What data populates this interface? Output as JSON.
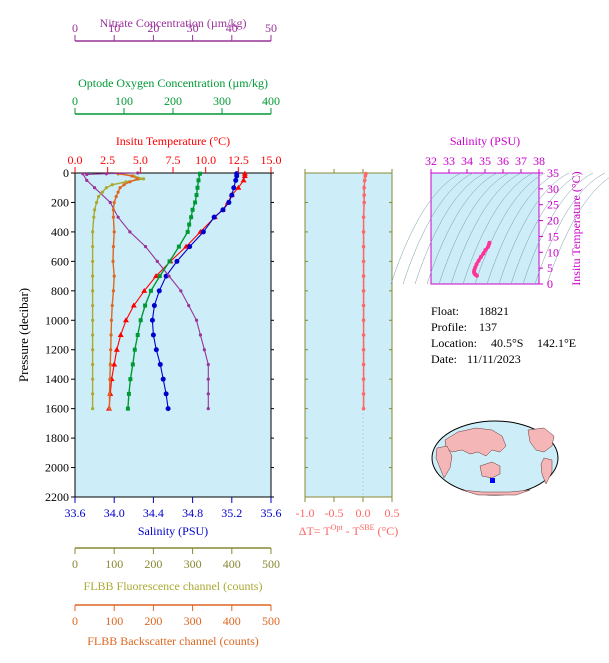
{
  "colors": {
    "temperature": "#ff0000",
    "salinity": "#0000cc",
    "nitrate": "#993399",
    "oxygen": "#009933",
    "fluorescence": "#aaaa33",
    "backscatter": "#dd6622",
    "delta_t": "#ff6666",
    "ts_axis": "#cc00cc",
    "ts_curve": "#ff3399",
    "plot_bg": "#cdeef8",
    "axis_olive": "#888833"
  },
  "info": {
    "float_label": "Float:",
    "float_value": "18821",
    "profile_label": "Profile:",
    "profile_value": "137",
    "location_label": "Location:",
    "location_lat": "40.5°S",
    "location_lon": "142.1°E",
    "date_label": "Date:",
    "date_value": "11/11/2023"
  },
  "map": {
    "marker": "float-position-marker"
  },
  "chart_data": [
    {
      "type": "line",
      "id": "profile",
      "ylabel": "Pressure (decibar)",
      "ylim": [
        2200,
        0
      ],
      "y_ticks": [
        "0",
        "200",
        "400",
        "600",
        "800",
        "1000",
        "1200",
        "1400",
        "1600",
        "1800",
        "2000",
        "2200"
      ],
      "grid": false,
      "axes": [
        {
          "key": "nitrate",
          "label": "Nitrate Concentration (µm/kg)",
          "range": [
            0,
            50
          ],
          "ticks": [
            "0",
            "10",
            "20",
            "30",
            "40",
            "50"
          ]
        },
        {
          "key": "oxygen",
          "label": "Optode Oxygen Concentration (µm/kg)",
          "range": [
            0,
            400
          ],
          "ticks": [
            "0",
            "100",
            "200",
            "300",
            "400"
          ]
        },
        {
          "key": "temperature",
          "label": "Insitu Temperature (°C)",
          "range": [
            0,
            15
          ],
          "ticks": [
            "0.0",
            "2.5",
            "5.0",
            "7.5",
            "10.0",
            "12.5",
            "15.0"
          ]
        },
        {
          "key": "salinity",
          "label": "Salinity (PSU)",
          "range": [
            33.6,
            35.6
          ],
          "ticks": [
            "33.6",
            "34.0",
            "34.4",
            "34.8",
            "35.2",
            "35.6"
          ]
        },
        {
          "key": "fluorescence",
          "label": "FLBB Fluorescence channel (counts)",
          "range": [
            0,
            500
          ],
          "ticks": [
            "0",
            "100",
            "200",
            "300",
            "400",
            "500"
          ]
        },
        {
          "key": "backscatter",
          "label": "FLBB Backscatter channel (counts)",
          "range": [
            0,
            500
          ],
          "ticks": [
            "0",
            "100",
            "200",
            "300",
            "400",
            "500"
          ]
        }
      ],
      "series": [
        {
          "key": "temperature",
          "pressure": [
            4,
            20,
            50,
            100,
            150,
            200,
            250,
            300,
            400,
            500,
            600,
            700,
            800,
            900,
            1000,
            1100,
            1200,
            1300,
            1400,
            1500,
            1600
          ],
          "values": [
            13.0,
            13.0,
            12.9,
            12.5,
            12.0,
            11.7,
            11.3,
            10.7,
            9.6,
            8.5,
            7.3,
            6.2,
            5.3,
            4.5,
            3.9,
            3.5,
            3.2,
            3.0,
            2.8,
            2.7,
            2.6
          ]
        },
        {
          "key": "salinity",
          "pressure": [
            4,
            20,
            50,
            100,
            150,
            200,
            250,
            300,
            400,
            500,
            600,
            700,
            800,
            900,
            1000,
            1100,
            1200,
            1300,
            1400,
            1500,
            1600
          ],
          "values": [
            35.25,
            35.25,
            35.24,
            35.22,
            35.2,
            35.17,
            35.11,
            35.02,
            34.91,
            34.77,
            34.64,
            34.53,
            34.46,
            34.41,
            34.39,
            34.4,
            34.43,
            34.47,
            34.5,
            34.53,
            34.55
          ]
        },
        {
          "key": "nitrate",
          "pressure": [
            5,
            50,
            100,
            200,
            300,
            400,
            500,
            600,
            700,
            800,
            900,
            1000,
            1100,
            1200,
            1300,
            1400,
            1500,
            1600
          ],
          "values": [
            2,
            3,
            5,
            9,
            11,
            14,
            18,
            21,
            24,
            27,
            29,
            31,
            32,
            33,
            34,
            34,
            34,
            34
          ]
        },
        {
          "key": "oxygen",
          "pressure": [
            5,
            50,
            100,
            150,
            200,
            250,
            300,
            350,
            400,
            500,
            600,
            700,
            800,
            900,
            1000,
            1100,
            1200,
            1300,
            1400,
            1500,
            1600
          ],
          "values": [
            255,
            252,
            250,
            248,
            245,
            240,
            237,
            233,
            230,
            212,
            193,
            173,
            155,
            143,
            134,
            128,
            122,
            118,
            113,
            110,
            108
          ]
        },
        {
          "key": "fluorescence",
          "pressure": [
            5,
            20,
            40,
            60,
            80,
            100,
            130,
            160,
            200,
            250,
            300,
            400,
            500,
            600,
            700,
            800,
            900,
            1000,
            1100,
            1200,
            1300,
            1400,
            1500,
            1600
          ],
          "values": [
            110,
            150,
            175,
            130,
            95,
            80,
            70,
            60,
            55,
            50,
            48,
            45,
            45,
            45,
            45,
            45,
            45,
            45,
            45,
            45,
            45,
            45,
            45,
            45
          ]
        },
        {
          "key": "backscatter",
          "pressure": [
            5,
            20,
            40,
            60,
            80,
            100,
            130,
            160,
            200,
            250,
            300,
            400,
            500,
            600,
            700,
            800,
            900,
            1000,
            1100,
            1200,
            1300,
            1400,
            1500,
            1600
          ],
          "values": [
            110,
            145,
            160,
            140,
            125,
            115,
            110,
            105,
            100,
            98,
            98,
            100,
            98,
            97,
            100,
            98,
            95,
            93,
            92,
            91,
            90,
            89,
            88,
            88
          ]
        },
        {
          "key": "nitrate_surface_cap",
          "pressure": [
            0,
            5,
            10
          ],
          "values": [
            16,
            8,
            3
          ]
        }
      ]
    },
    {
      "type": "line",
      "id": "delta_t",
      "xlabel": "ΔT= T^Opt - T^SBE (°C)",
      "xlim": [
        -1.0,
        0.5
      ],
      "x_ticks": [
        "-1.0",
        "-0.5",
        "0.0",
        "0.5"
      ],
      "ylim": [
        2200,
        0
      ],
      "series": [
        {
          "name": "",
          "pressure": [
            4,
            20,
            50,
            100,
            150,
            200,
            300,
            400,
            500,
            600,
            700,
            800,
            900,
            1000,
            1100,
            1200,
            1300,
            1400,
            1500,
            1600
          ],
          "values": [
            0.05,
            0.04,
            0.03,
            0.02,
            0.02,
            0.02,
            0.01,
            0.01,
            0.01,
            0.01,
            0.01,
            0.01,
            0.01,
            0.01,
            0.01,
            0.01,
            0.01,
            0.01,
            0.01,
            0.01
          ]
        }
      ]
    },
    {
      "type": "scatter",
      "id": "ts_diagram",
      "title": "Salinity (PSU)",
      "ylabel": "Insitu Temperature (°C)",
      "xlim": [
        32,
        38
      ],
      "ylim": [
        0,
        35
      ],
      "x_ticks": [
        "32",
        "33",
        "34",
        "35",
        "36",
        "37",
        "38"
      ],
      "y_ticks": [
        "0",
        "5",
        "10",
        "15",
        "20",
        "25",
        "30",
        "35"
      ],
      "series": [
        {
          "name": "",
          "x": [
            35.25,
            35.22,
            35.17,
            35.02,
            34.91,
            34.77,
            34.64,
            34.53,
            34.46,
            34.41,
            34.39,
            34.4,
            34.43,
            34.47,
            34.5,
            34.55
          ],
          "y": [
            13.0,
            12.5,
            11.7,
            10.7,
            9.6,
            8.5,
            7.3,
            6.2,
            5.3,
            4.5,
            3.9,
            3.5,
            3.2,
            3.0,
            2.8,
            2.6
          ]
        }
      ]
    }
  ]
}
